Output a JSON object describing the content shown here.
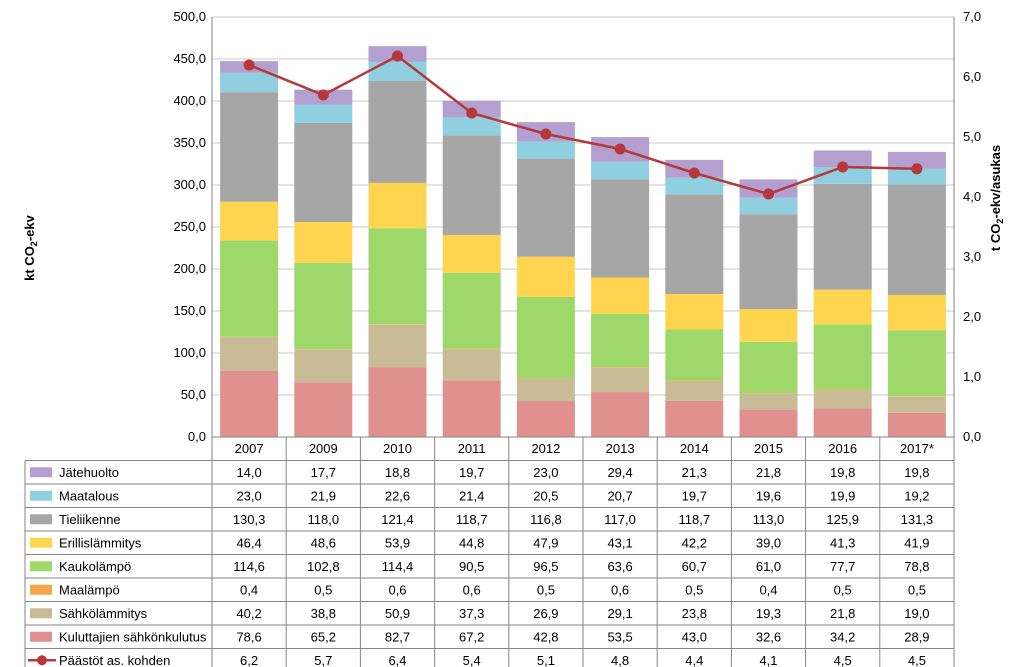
{
  "chart_data": {
    "type": "bar",
    "stacked": true,
    "categories": [
      "2007",
      "2009",
      "2010",
      "2011",
      "2012",
      "2013",
      "2014",
      "2015",
      "2016",
      "2017*"
    ],
    "y_left": {
      "label_main": "kt CO",
      "label_sub": "2",
      "label_tail": "-ekv",
      "ylim": [
        0,
        500
      ],
      "ticks": [
        "0,0",
        "50,0",
        "100,0",
        "150,0",
        "200,0",
        "250,0",
        "300,0",
        "350,0",
        "400,0",
        "450,0",
        "500,0"
      ]
    },
    "y_right": {
      "label_main": "t CO",
      "label_sub": "2",
      "label_tail": "-ekv/asukas",
      "ylim": [
        0,
        7
      ],
      "ticks": [
        "0,0",
        "1,0",
        "2,0",
        "3,0",
        "4,0",
        "5,0",
        "6,0",
        "7,0"
      ]
    },
    "grid": true,
    "legend_placement": "data-table",
    "series": [
      {
        "name": "Jätehuolto",
        "color": "#b4a0d0",
        "values": [
          14.0,
          17.7,
          18.8,
          19.7,
          23.0,
          29.4,
          21.3,
          21.8,
          19.8,
          19.8
        ],
        "labels": [
          "14,0",
          "17,7",
          "18,8",
          "19,7",
          "23,0",
          "29,4",
          "21,3",
          "21,8",
          "19,8",
          "19,8"
        ]
      },
      {
        "name": "Maatalous",
        "color": "#8fcfe0",
        "values": [
          23.0,
          21.9,
          22.6,
          21.4,
          20.5,
          20.7,
          19.7,
          19.6,
          19.9,
          19.2
        ],
        "labels": [
          "23,0",
          "21,9",
          "22,6",
          "21,4",
          "20,5",
          "20,7",
          "19,7",
          "19,6",
          "19,9",
          "19,2"
        ]
      },
      {
        "name": "Tieliikenne",
        "color": "#a6a6a6",
        "values": [
          130.3,
          118.0,
          121.4,
          118.7,
          116.8,
          117.0,
          118.7,
          113.0,
          125.9,
          131.3
        ],
        "labels": [
          "130,3",
          "118,0",
          "121,4",
          "118,7",
          "116,8",
          "117,0",
          "118,7",
          "113,0",
          "125,9",
          "131,3"
        ]
      },
      {
        "name": "Erillislämmitys",
        "color": "#ffd54f",
        "values": [
          46.4,
          48.6,
          53.9,
          44.8,
          47.9,
          43.1,
          42.2,
          39.0,
          41.3,
          41.9
        ],
        "labels": [
          "46,4",
          "48,6",
          "53,9",
          "44,8",
          "47,9",
          "43,1",
          "42,2",
          "39,0",
          "41,3",
          "41,9"
        ]
      },
      {
        "name": "Kaukolämpö",
        "color": "#9fd86a",
        "values": [
          114.6,
          102.8,
          114.4,
          90.5,
          96.5,
          63.6,
          60.7,
          61.0,
          77.7,
          78.8
        ],
        "labels": [
          "114,6",
          "102,8",
          "114,4",
          "90,5",
          "96,5",
          "63,6",
          "60,7",
          "61,0",
          "77,7",
          "78,8"
        ]
      },
      {
        "name": "Maalämpö",
        "color": "#f7a54a",
        "values": [
          0.4,
          0.5,
          0.6,
          0.6,
          0.5,
          0.6,
          0.5,
          0.4,
          0.5,
          0.5
        ],
        "labels": [
          "0,4",
          "0,5",
          "0,6",
          "0,6",
          "0,5",
          "0,6",
          "0,5",
          "0,4",
          "0,5",
          "0,5"
        ]
      },
      {
        "name": "Sähkölämmitys",
        "color": "#c9bb96",
        "values": [
          40.2,
          38.8,
          50.9,
          37.3,
          26.9,
          29.1,
          23.8,
          19.3,
          21.8,
          19.0
        ],
        "labels": [
          "40,2",
          "38,8",
          "50,9",
          "37,3",
          "26,9",
          "29,1",
          "23,8",
          "19,3",
          "21,8",
          "19,0"
        ]
      },
      {
        "name": "Kuluttajien sähkönkulutus",
        "color": "#e0918f",
        "values": [
          78.6,
          65.2,
          82.7,
          67.2,
          42.8,
          53.5,
          43.0,
          32.6,
          34.2,
          28.9
        ],
        "labels": [
          "78,6",
          "65,2",
          "82,7",
          "67,2",
          "42,8",
          "53,5",
          "43,0",
          "32,6",
          "34,2",
          "28,9"
        ]
      }
    ],
    "line_series": {
      "name": "Päästöt as. kohden",
      "color": "#b5393a",
      "axis": "right",
      "values": [
        6.2,
        5.7,
        6.35,
        5.4,
        5.05,
        4.8,
        4.4,
        4.05,
        4.5,
        4.47
      ],
      "labels": [
        "6,2",
        "5,7",
        "6,4",
        "5,4",
        "5,1",
        "4,8",
        "4,4",
        "4,1",
        "4,5",
        "4,5"
      ]
    }
  }
}
